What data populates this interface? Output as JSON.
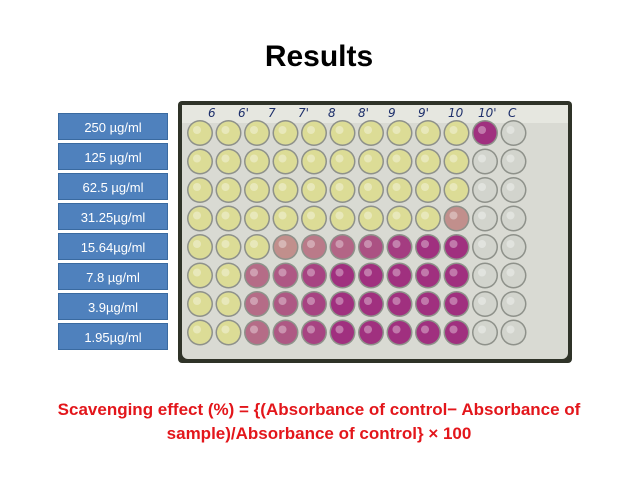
{
  "slide": {
    "title": "Results",
    "concentration_labels": [
      "250 µg/ml",
      "125 µg/ml",
      "62.5 µg/ml",
      "31.25µg/ml",
      "15.64µg/ml",
      "7.8 µg/ml",
      "3.9µg/ml",
      "1.95µg/ml"
    ],
    "plate_column_markings": [
      "6",
      "6'",
      "7",
      "7'",
      "8",
      "8'",
      "9",
      "9'",
      "10",
      "10'",
      "C"
    ],
    "formula_line1": "Scavenging effect (%) = {(Absorbance of control− Absorbance of",
    "formula_line2": "sample)/Absorbance of control} × 100",
    "colors": {
      "label_box": "#4f81bd",
      "formula_text": "#e3161b",
      "well_yellow": "#dcdc9a",
      "well_purple": "#a0307f"
    }
  }
}
